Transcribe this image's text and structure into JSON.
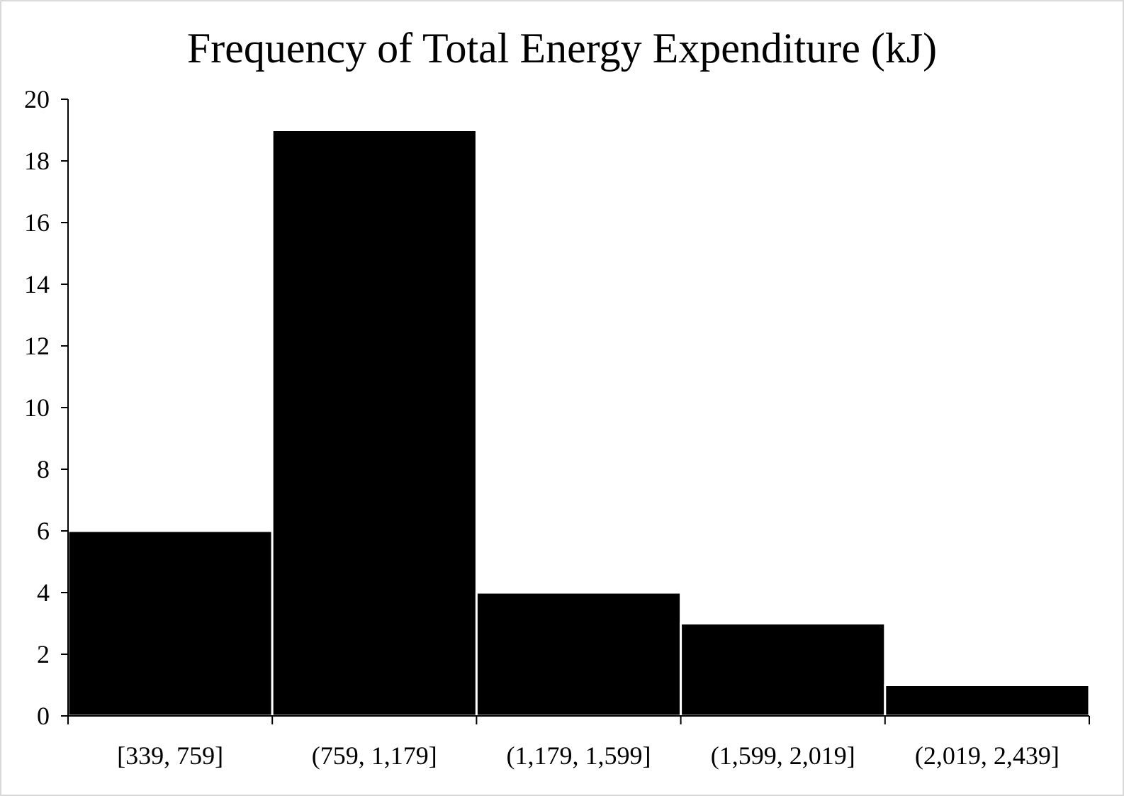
{
  "chart_data": {
    "type": "bar",
    "title": "Frequency of Total Energy Expenditure (kJ)",
    "xlabel": "",
    "ylabel": "",
    "categories": [
      "[339, 759]",
      "(759, 1,179]",
      "(1,179, 1,599]",
      "(1,599, 2,019]",
      "(2,019, 2,439]"
    ],
    "values": [
      6,
      19,
      4,
      3,
      1
    ],
    "ylim": [
      0,
      20
    ],
    "yticks": [
      0,
      2,
      4,
      6,
      8,
      10,
      12,
      14,
      16,
      18,
      20
    ],
    "grid": false,
    "legend": "none",
    "bar_color": "#000000",
    "bar_edge_color": "#ffffff"
  }
}
